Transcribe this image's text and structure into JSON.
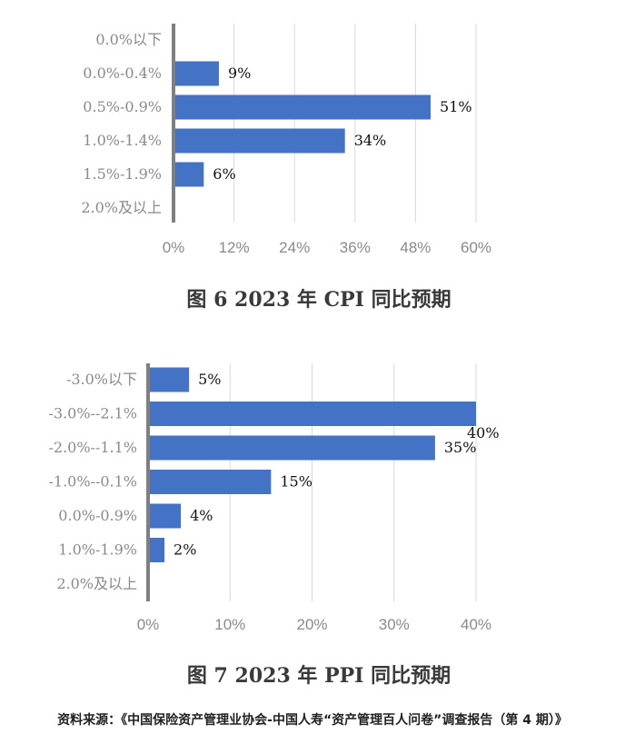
{
  "chart_data": [
    {
      "type": "bar",
      "orientation": "horizontal",
      "title": "图 6 2023 年 CPI 同比预期",
      "categories": [
        "0.0%以下",
        "0.0%-0.4%",
        "0.5%-0.9%",
        "1.0%-1.4%",
        "1.5%-1.9%",
        "2.0%及以上"
      ],
      "values": [
        0,
        9,
        51,
        34,
        6,
        0
      ],
      "value_labels": [
        "",
        "9%",
        "51%",
        "34%",
        "6%",
        ""
      ],
      "xlim": [
        0,
        60
      ],
      "ticks": [
        "0%",
        "12%",
        "24%",
        "36%",
        "48%",
        "60%"
      ],
      "bar_color": "#4472c4",
      "grid": true
    },
    {
      "type": "bar",
      "orientation": "horizontal",
      "title": "图 7 2023 年 PPI 同比预期",
      "categories": [
        "-3.0%以下",
        "-3.0%--2.1%",
        "-2.0%--1.1%",
        "-1.0%--0.1%",
        "0.0%-0.9%",
        "1.0%-1.9%",
        "2.0%及以上"
      ],
      "values": [
        5,
        40,
        35,
        15,
        4,
        2,
        0
      ],
      "value_labels": [
        "5%",
        "40%",
        "35%",
        "15%",
        "4%",
        "2%",
        ""
      ],
      "xlim": [
        0,
        40
      ],
      "ticks": [
        "0%",
        "10%",
        "20%",
        "30%",
        "40%"
      ],
      "bar_color": "#4472c4",
      "grid": true
    }
  ],
  "source": "资料来源：《中国保险资产管理业协会-中国人寿“资产管理百人问卷”调查报告（第 4 期）》"
}
